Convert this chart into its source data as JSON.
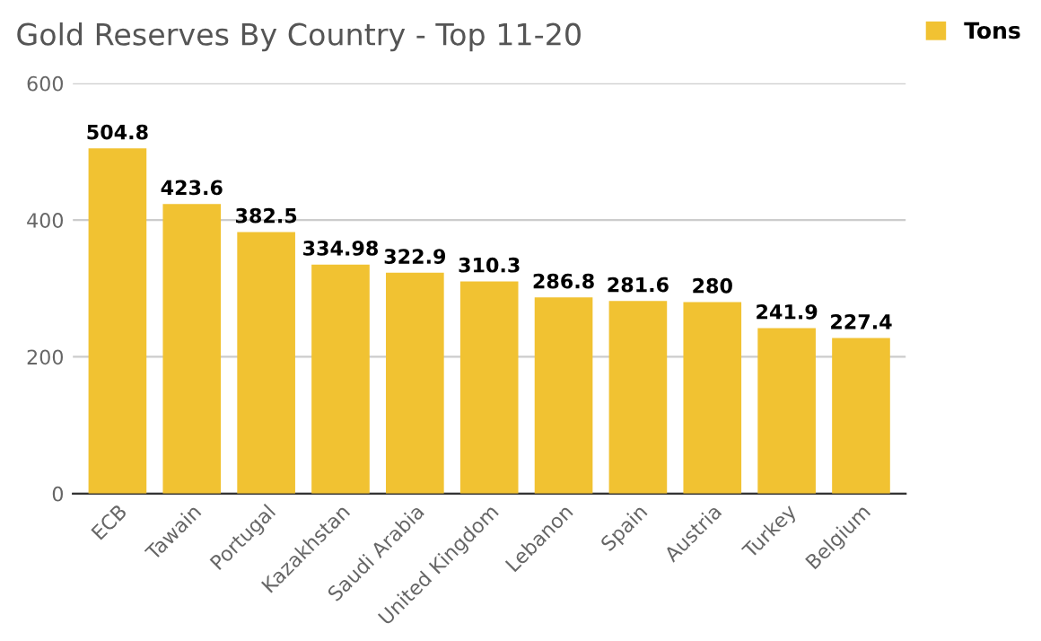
{
  "chart_data": {
    "type": "bar",
    "title": "Gold Reserves By Country - Top 11-20",
    "categories": [
      "ECB",
      "Tawain",
      "Portugal",
      "Kazakhstan",
      "Saudi Arabia",
      "United Kingdom",
      "Lebanon",
      "Spain",
      "Austria",
      "Turkey",
      "Belgium"
    ],
    "series": [
      {
        "name": "Tons",
        "color": "#f1c232",
        "values": [
          504.8,
          423.6,
          382.5,
          334.98,
          322.9,
          310.3,
          286.8,
          281.6,
          280,
          241.9,
          227.4
        ]
      }
    ],
    "ylim": [
      0,
      600
    ],
    "yticks": [
      0,
      200,
      400,
      600
    ],
    "grid": "y",
    "legend": "top right",
    "data_labels": true
  }
}
